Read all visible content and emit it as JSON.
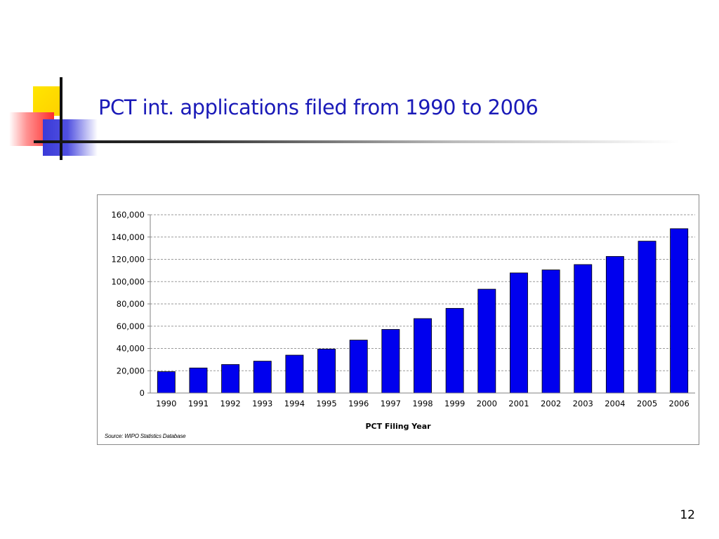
{
  "slide": {
    "title": "PCT int. applications filed from 1990 to 2006",
    "page_number": "12"
  },
  "colors": {
    "title": "#1a1ab8",
    "bar": "#0000ee",
    "bar_outline": "#000000",
    "gridline": "#9a9a9a"
  },
  "chart_data": {
    "type": "bar",
    "title": "",
    "xlabel": "PCT Filing Year",
    "ylabel": "",
    "categories": [
      "1990",
      "1991",
      "1992",
      "1993",
      "1994",
      "1995",
      "1996",
      "1997",
      "1998",
      "1999",
      "2000",
      "2001",
      "2002",
      "2003",
      "2004",
      "2005",
      "2006"
    ],
    "values": [
      19200,
      22500,
      25600,
      28600,
      34000,
      39500,
      47500,
      57100,
      66800,
      76000,
      93200,
      107800,
      110500,
      115300,
      122600,
      136300,
      147500
    ],
    "ylim": [
      0,
      160000
    ],
    "yticks": [
      0,
      20000,
      40000,
      60000,
      80000,
      100000,
      120000,
      140000,
      160000
    ],
    "ytick_labels": [
      "0",
      "20,000",
      "40,000",
      "60,000",
      "80,000",
      "100,000",
      "120,000",
      "140,000",
      "160,000"
    ],
    "grid": "horizontal dashed",
    "legend": "none",
    "source": "Source: WIPO Statistics Database"
  }
}
